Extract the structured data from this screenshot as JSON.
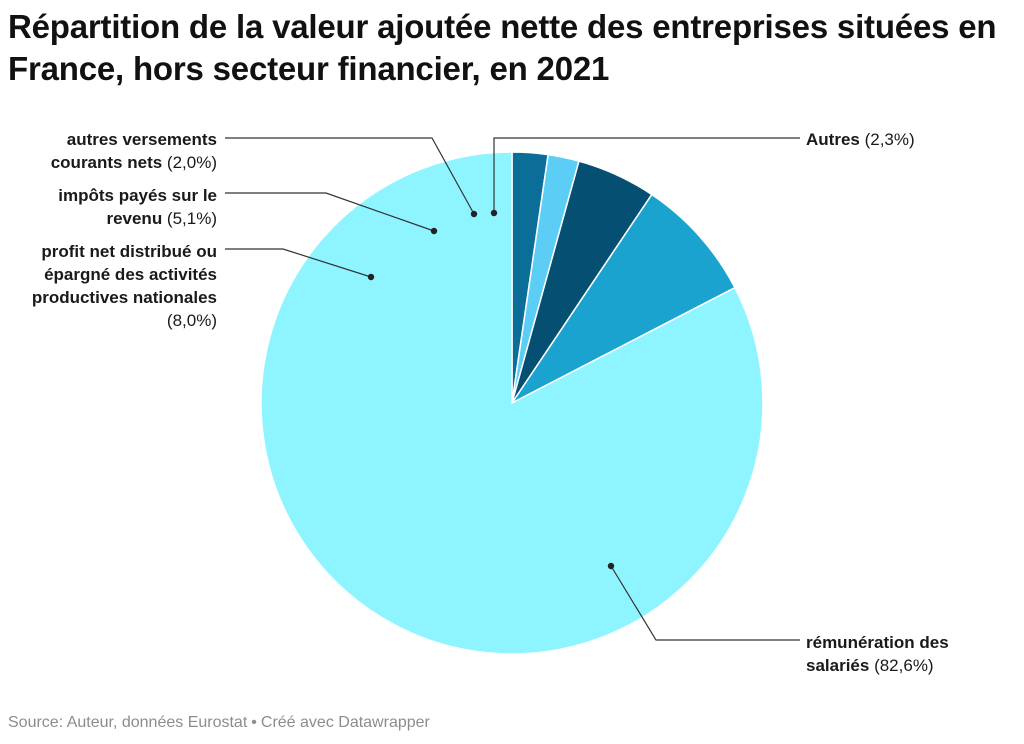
{
  "chart_data": {
    "type": "pie",
    "title": "Répartition de la valeur ajoutée nette des entreprises situées en France, hors secteur financier, en 2021",
    "slices": [
      {
        "label": "Autres",
        "value_label": "(2,3%)",
        "value": 2.3,
        "color": "#0b6e99"
      },
      {
        "label": "autres versements courants nets",
        "value_label": "(2,0%)",
        "value": 2.0,
        "color": "#5ccdf4"
      },
      {
        "label": "impôts payés sur le revenu",
        "value_label": "(5,1%)",
        "value": 5.1,
        "color": "#054f72"
      },
      {
        "label": "profit net distribué ou épargné des activités productives nationales",
        "value_label": "(8,0%)",
        "value": 8.0,
        "color": "#1ba3cf"
      },
      {
        "label": "rémunération des salariés",
        "value_label": "(82,6%)",
        "value": 82.6,
        "color": "#8ef4ff"
      }
    ],
    "source": "Source: Auteur, données Eurostat",
    "credit": "Créé avec Datawrapper"
  }
}
